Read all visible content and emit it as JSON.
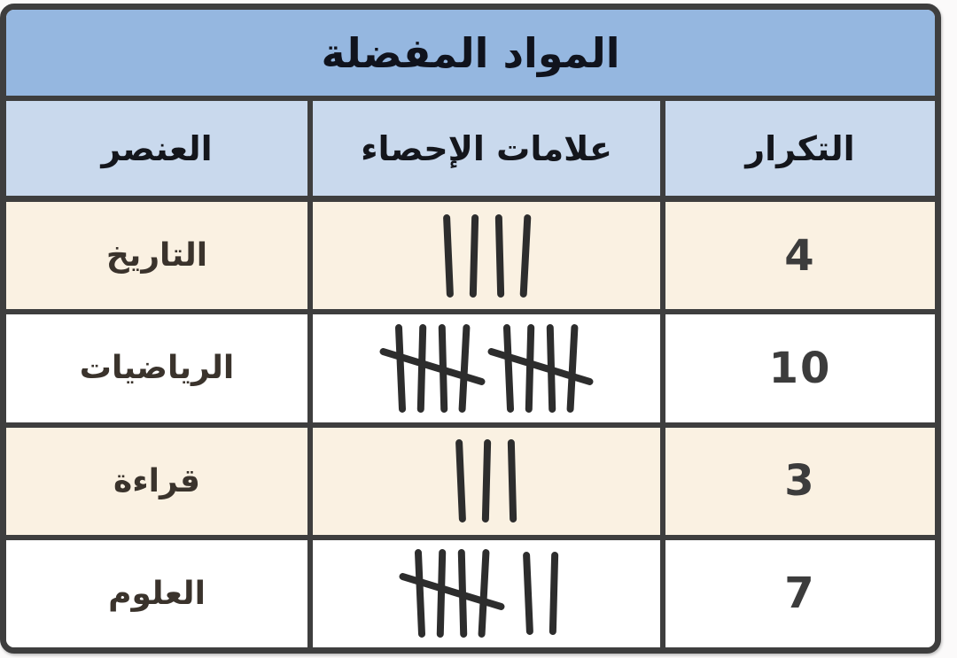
{
  "title": "المواد المفضلة",
  "columns": {
    "item": "العنصر",
    "tally": "علامات الإحصاء",
    "frequency": "التكرار"
  },
  "rows": [
    {
      "item": "التاريخ",
      "tally_groups": [
        4
      ],
      "frequency": "4",
      "shade": "cream"
    },
    {
      "item": "الرياضيات",
      "tally_groups": [
        5,
        5
      ],
      "frequency": "10",
      "shade": "white"
    },
    {
      "item": "قراءة",
      "tally_groups": [
        3
      ],
      "frequency": "3",
      "shade": "cream"
    },
    {
      "item": "العلوم",
      "tally_groups": [
        5,
        2
      ],
      "frequency": "7",
      "shade": "white"
    }
  ],
  "colors": {
    "title_bg": "#95B7E0",
    "header_bg": "#C9D9ED",
    "row_cream": "#FAF1E2",
    "row_white": "#FFFFFF",
    "border": "#3E3E3E",
    "tally_ink": "#2D2D2D"
  },
  "chart_data": {
    "type": "table",
    "title": "المواد المفضلة",
    "columns": [
      "العنصر",
      "علامات الإحصاء",
      "التكرار"
    ],
    "categories": [
      "التاريخ",
      "الرياضيات",
      "قراءة",
      "العلوم"
    ],
    "values": [
      4,
      10,
      3,
      7
    ],
    "tally_groups": [
      [
        4
      ],
      [
        5,
        5
      ],
      [
        3
      ],
      [
        5,
        2
      ]
    ],
    "layout": "rtl-table, title banner top, header row below, alternating cream/white data rows"
  }
}
